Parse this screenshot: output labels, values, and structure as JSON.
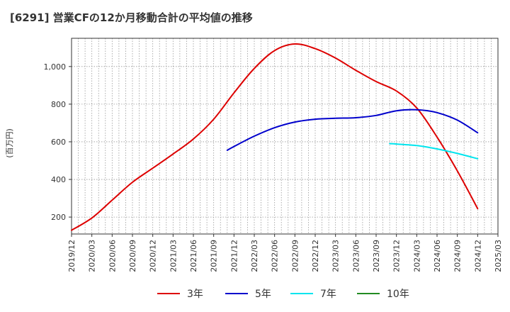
{
  "title": "[6291]  営業CFの12か月移動合計の平均値の推移",
  "chart_data": {
    "type": "line",
    "ylabel": "(百万円)",
    "ylim": [
      110,
      1150
    ],
    "yticks": [
      200,
      400,
      600,
      800,
      1000
    ],
    "ytick_labels": [
      "200",
      "400",
      "600",
      "800",
      "1,000"
    ],
    "x_tick_labels": [
      "2019/12",
      "2020/03",
      "2020/06",
      "2020/09",
      "2020/12",
      "2021/03",
      "2021/06",
      "2021/09",
      "2021/12",
      "2022/03",
      "2022/06",
      "2022/09",
      "2022/12",
      "2023/03",
      "2023/06",
      "2023/09",
      "2023/12",
      "2024/03",
      "2024/06",
      "2024/09",
      "2024/12",
      "2025/03"
    ],
    "grid": true,
    "legend_position": "bottom",
    "series": [
      {
        "name": "3年",
        "color": "#dd0000",
        "x": [
          "2019/12",
          "2020/03",
          "2020/06",
          "2020/09",
          "2020/12",
          "2021/03",
          "2021/06",
          "2021/09",
          "2021/12",
          "2022/03",
          "2022/06",
          "2022/09",
          "2022/12",
          "2023/03",
          "2023/06",
          "2023/09",
          "2023/12",
          "2024/03",
          "2024/06",
          "2024/09",
          "2024/12"
        ],
        "values": [
          130,
          195,
          290,
          385,
          460,
          535,
          615,
          720,
          860,
          990,
          1085,
          1120,
          1095,
          1045,
          980,
          920,
          870,
          780,
          625,
          445,
          245
        ]
      },
      {
        "name": "5年",
        "color": "#0000cc",
        "x": [
          "2021/11",
          "2021/12",
          "2022/03",
          "2022/06",
          "2022/09",
          "2022/12",
          "2023/03",
          "2023/06",
          "2023/09",
          "2023/12",
          "2024/03",
          "2024/06",
          "2024/09",
          "2024/12"
        ],
        "values": [
          555,
          575,
          630,
          675,
          705,
          720,
          725,
          728,
          740,
          765,
          770,
          755,
          715,
          648
        ]
      },
      {
        "name": "7年",
        "color": "#00e5ee",
        "x": [
          "2023/11",
          "2023/12",
          "2024/03",
          "2024/06",
          "2024/09",
          "2024/12"
        ],
        "values": [
          590,
          588,
          580,
          562,
          538,
          510
        ]
      },
      {
        "name": "10年",
        "color": "#228b22",
        "x": [],
        "values": []
      }
    ]
  }
}
